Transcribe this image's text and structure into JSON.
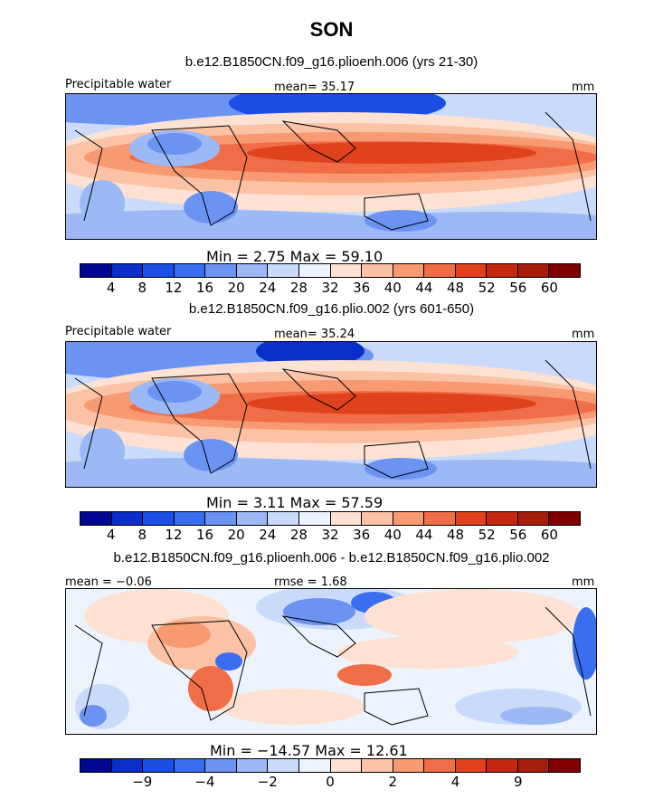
{
  "figure_title": "SON",
  "units": "mm",
  "panels": [
    {
      "case_title": "b.e12.B1850CN.f09_g16.plioenh.006 (yrs 21-30)",
      "left_label": "Precipitable water",
      "center_label": "mean=  35.17",
      "right_label": "mm",
      "minmax": "Min =    2.75 Max =   59.10",
      "colorbar": {
        "colors": [
          "#000891",
          "#0a2ec8",
          "#1b4ee4",
          "#3a6df0",
          "#6a93f2",
          "#9cb9f6",
          "#c9dafa",
          "#edf3fd",
          "#fde2d3",
          "#fcc2a5",
          "#f79a72",
          "#f06e47",
          "#e0421e",
          "#c42910",
          "#a51e0c",
          "#800000"
        ],
        "ticks": [
          "4",
          "8",
          "12",
          "16",
          "20",
          "24",
          "28",
          "32",
          "36",
          "40",
          "44",
          "48",
          "52",
          "56",
          "60"
        ]
      }
    },
    {
      "case_title": "b.e12.B1850CN.f09_g16.plio.002 (yrs 601-650)",
      "left_label": "Precipitable water",
      "center_label": "mean=  35.24",
      "right_label": "mm",
      "minmax": "Min =    3.11 Max =   57.59",
      "colorbar": {
        "colors": [
          "#000891",
          "#0a2ec8",
          "#1b4ee4",
          "#3a6df0",
          "#6a93f2",
          "#9cb9f6",
          "#c9dafa",
          "#edf3fd",
          "#fde2d3",
          "#fcc2a5",
          "#f79a72",
          "#f06e47",
          "#e0421e",
          "#c42910",
          "#a51e0c",
          "#800000"
        ],
        "ticks": [
          "4",
          "8",
          "12",
          "16",
          "20",
          "24",
          "28",
          "32",
          "36",
          "40",
          "44",
          "48",
          "52",
          "56",
          "60"
        ]
      }
    },
    {
      "case_title": "b.e12.B1850CN.f09_g16.plioenh.006 - b.e12.B1850CN.f09_g16.plio.002",
      "left_label": "mean =  −0.06",
      "center_label": "rmse =    1.68",
      "right_label": "mm",
      "minmax": "Min = −14.57 Max =   12.61",
      "colorbar": {
        "colors": [
          "#000891",
          "#0a2ec8",
          "#1b4ee4",
          "#3a6df0",
          "#6a93f2",
          "#9cb9f6",
          "#c9dafa",
          "#edf3fd",
          "#fde2d3",
          "#fcc2a5",
          "#f79a72",
          "#f06e47",
          "#e0421e",
          "#c42910",
          "#a51e0c",
          "#800000"
        ],
        "ticks": [
          "−9",
          "−4",
          "−2",
          "0",
          "2",
          "4",
          "9"
        ]
      }
    }
  ],
  "chart_data": [
    {
      "type": "heatmap",
      "title": "b.e12.B1850CN.f09_g16.plioenh.006 (yrs 21-30)",
      "variable": "Precipitable water",
      "units": "mm",
      "mean": 35.17,
      "min": 2.75,
      "max": 59.1,
      "contour_levels": [
        4,
        8,
        12,
        16,
        20,
        24,
        28,
        32,
        36,
        40,
        44,
        48,
        52,
        56,
        60
      ]
    },
    {
      "type": "heatmap",
      "title": "b.e12.B1850CN.f09_g16.plio.002 (yrs 601-650)",
      "variable": "Precipitable water",
      "units": "mm",
      "mean": 35.24,
      "min": 3.11,
      "max": 57.59,
      "contour_levels": [
        4,
        8,
        12,
        16,
        20,
        24,
        28,
        32,
        36,
        40,
        44,
        48,
        52,
        56,
        60
      ]
    },
    {
      "type": "heatmap",
      "title": "b.e12.B1850CN.f09_g16.plioenh.006 - b.e12.B1850CN.f09_g16.plio.002",
      "units": "mm",
      "mean": -0.06,
      "rmse": 1.68,
      "min": -14.57,
      "max": 12.61,
      "contour_levels": [
        -9,
        -4,
        -2,
        0,
        2,
        4,
        9
      ]
    }
  ]
}
